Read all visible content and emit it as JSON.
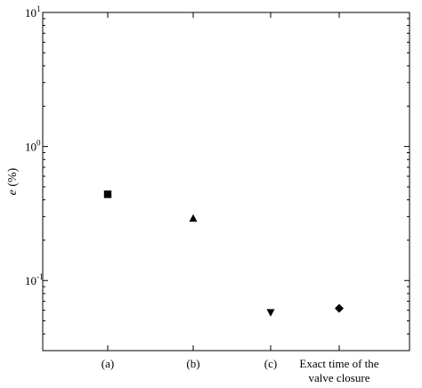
{
  "chart_data": {
    "type": "scatter",
    "categories": [
      "(a)",
      "(b)",
      "(c)",
      "Exact time of the valve closure"
    ],
    "category_label_lines": [
      [
        "(a)"
      ],
      [
        "(b)"
      ],
      [
        "(c)"
      ],
      [
        "Exact time of the",
        "valve closure"
      ]
    ],
    "values": [
      0.44,
      0.29,
      0.058,
      0.062
    ],
    "markers": [
      "square",
      "triangle-up",
      "triangle-down",
      "diamond"
    ],
    "ylabel_italic": "e",
    "ylabel_rest": " (%)",
    "xlabel": "",
    "title": "",
    "yscale": "log",
    "ylim": [
      0.03,
      10
    ],
    "yticks_major": [
      {
        "value": 10,
        "base": "10",
        "exp": "1"
      },
      {
        "value": 1,
        "base": "10",
        "exp": "0"
      },
      {
        "value": 0.1,
        "base": "10",
        "exp": "-1"
      }
    ],
    "grid": false,
    "marker_color": "#000000"
  }
}
